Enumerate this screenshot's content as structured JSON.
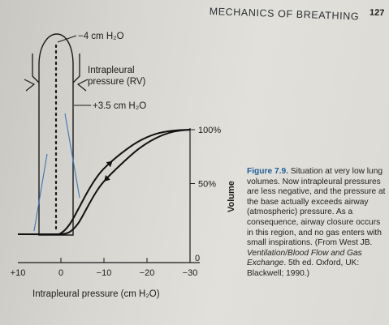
{
  "page": {
    "header": "MECHANICS OF BREATHING",
    "page_number": "127"
  },
  "figure": {
    "lung_top_label": "−4 cm H₂O",
    "lung_mid_label_line1": "Intrapleural",
    "lung_mid_label_line2": "pressure (RV)",
    "lung_bottom_label": "+3.5 cm H₂O",
    "volume_axis_label": "Volume",
    "volume_ticks": [
      "100%",
      "50%",
      "0"
    ],
    "x_axis_label": "Intrapleural pressure (cm H₂O)",
    "x_ticks": [
      "+10",
      "0",
      "−10",
      "−20",
      "−30"
    ],
    "curve_color": "#111111",
    "arrow_color": "#3a78b5"
  },
  "chart_data": {
    "type": "line",
    "title": "",
    "xlabel": "Intrapleural pressure (cm H₂O)",
    "ylabel": "Volume",
    "xlim": [
      10,
      -30
    ],
    "ylim": [
      0,
      100
    ],
    "x_ticks": [
      "+10",
      "0",
      "−10",
      "−20",
      "−30"
    ],
    "y_ticks": [
      "0",
      "50%",
      "100%"
    ],
    "series": [
      {
        "x": [
          10,
          2,
          0,
          -2,
          -4,
          -6,
          -8,
          -10,
          -14,
          -18,
          -22,
          -26,
          -30
        ],
        "y": [
          3,
          3,
          4,
          12,
          26,
          41,
          54,
          64,
          78,
          89,
          96,
          99,
          100
        ]
      },
      {
        "x": [
          10,
          2,
          0,
          -2,
          -4,
          -6,
          -8,
          -10,
          -14,
          -18,
          -22,
          -26,
          -30
        ],
        "y": [
          3,
          3,
          3,
          5,
          13,
          27,
          41,
          52,
          68,
          82,
          92,
          98,
          100
        ]
      }
    ]
  },
  "caption": {
    "title": "Figure 7.9.",
    "text": "Situation at very low lung volumes. Now intrapleural pressures are less negative, and the pressure at the base actually exceeds airway (atmospheric) pressure. As a consequence, airway closure occurs in this region, and no gas enters with small inspirations. (From West JB. ",
    "source_italic": "Ventilation/Blood Flow and Gas Exchange",
    "source_tail": ". 5th ed. Oxford, UK: Blackwell; 1990.)"
  }
}
